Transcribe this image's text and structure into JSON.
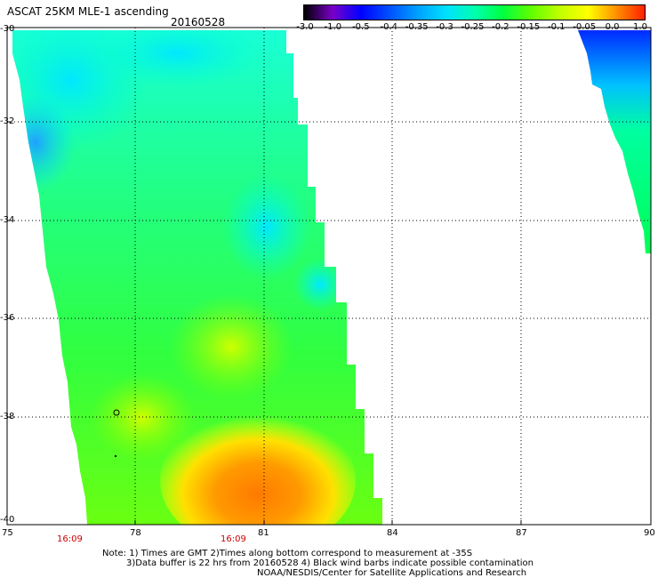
{
  "header": {
    "title": "ASCAT 25KM MLE-1 ascending",
    "date": "20160528"
  },
  "colorbar": {
    "labels": [
      "-3.0",
      "-1.0",
      "-0.5",
      "-0.4",
      "-0.35",
      "-0.3",
      "-0.25",
      "-0.2",
      "-0.15",
      "-0.1",
      "-0.05",
      "0.0",
      "1.0"
    ],
    "colors": [
      "#000000",
      "#7a00c8",
      "#0000ff",
      "#0050ff",
      "#00a0ff",
      "#00e0ff",
      "#00ffb0",
      "#00ff40",
      "#60ff00",
      "#c0ff00",
      "#ffff00",
      "#ff9000",
      "#ff2000"
    ]
  },
  "axes": {
    "lat_labels": [
      "-30",
      "-32",
      "-34",
      "-36",
      "-38",
      "-40"
    ],
    "lon_labels": [
      "75",
      "78",
      "81",
      "84",
      "87",
      "90"
    ]
  },
  "times": [
    "16:09",
    "16:09"
  ],
  "note": {
    "line1": "Note: 1) Times are GMT 2)Times along bottom correspond to measurement at -35S",
    "line2": "3)Data buffer is 22 hrs from 20160528 4) Black wind barbs indicate possible contamination",
    "line3": "NOAA/NESDIS/Center for Satellite Applications and Research"
  }
}
